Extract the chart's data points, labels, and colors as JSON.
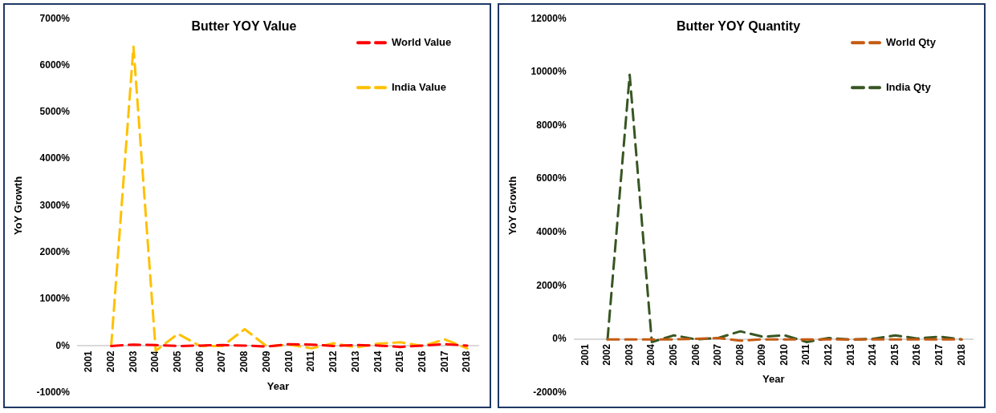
{
  "chart_data": [
    {
      "type": "line",
      "title": "Butter YOY Value",
      "xlabel": "Year",
      "ylabel": "YoY Growth",
      "categories": [
        "2001",
        "2002",
        "2003",
        "2004",
        "2005",
        "2006",
        "2007",
        "2008",
        "2009",
        "2010",
        "2011",
        "2012",
        "2013",
        "2014",
        "2015",
        "2016",
        "2017",
        "2018"
      ],
      "series": [
        {
          "name": "World Value",
          "color": "#ff0000",
          "values": [
            null,
            0,
            30,
            20,
            0,
            10,
            20,
            10,
            -10,
            40,
            30,
            0,
            20,
            10,
            -20,
            10,
            40,
            10
          ]
        },
        {
          "name": "India Value",
          "color": "#ffc000",
          "values": [
            null,
            0,
            6400,
            -100,
            260,
            0,
            0,
            360,
            -10,
            30,
            -50,
            60,
            -30,
            50,
            80,
            0,
            140,
            -50
          ]
        }
      ],
      "ylim": [
        -1000,
        7000
      ],
      "yticks": [
        {
          "value": -1000,
          "label": "-1000%"
        },
        {
          "value": 0,
          "label": "0%"
        },
        {
          "value": 1000,
          "label": "1000%"
        },
        {
          "value": 2000,
          "label": "2000%"
        },
        {
          "value": 3000,
          "label": "3000%"
        },
        {
          "value": 4000,
          "label": "4000%"
        },
        {
          "value": 5000,
          "label": "5000%"
        },
        {
          "value": 6000,
          "label": "6000%"
        },
        {
          "value": 7000,
          "label": "7000%"
        }
      ],
      "legend": "top right",
      "marker": "none",
      "line_style": "dashed"
    },
    {
      "type": "line",
      "title": "Butter YOY Quantity",
      "xlabel": "Year",
      "ylabel": "YoY Growth",
      "categories": [
        "2001",
        "2002",
        "2003",
        "2004",
        "2005",
        "2006",
        "2007",
        "2008",
        "2009",
        "2010",
        "2011",
        "2012",
        "2013",
        "2014",
        "2015",
        "2016",
        "2017",
        "2018"
      ],
      "series": [
        {
          "name": "World Qty",
          "color": "#c55a11",
          "values": [
            null,
            0,
            0,
            0,
            0,
            20,
            50,
            -50,
            0,
            0,
            0,
            0,
            0,
            0,
            0,
            0,
            0,
            0
          ]
        },
        {
          "name": "India Qty",
          "color": "#375623",
          "values": [
            null,
            0,
            9900,
            -100,
            150,
            0,
            50,
            300,
            100,
            150,
            -100,
            50,
            -10,
            20,
            150,
            30,
            100,
            0
          ]
        }
      ],
      "ylim": [
        -2000,
        12000
      ],
      "yticks": [
        {
          "value": -2000,
          "label": "-2000%"
        },
        {
          "value": 0,
          "label": "0%"
        },
        {
          "value": 2000,
          "label": "2000%"
        },
        {
          "value": 4000,
          "label": "4000%"
        },
        {
          "value": 6000,
          "label": "6000%"
        },
        {
          "value": 8000,
          "label": "8000%"
        },
        {
          "value": 10000,
          "label": "10000%"
        },
        {
          "value": 12000,
          "label": "12000%"
        }
      ],
      "legend": "top right",
      "marker": "none",
      "line_style": "dashed"
    }
  ]
}
